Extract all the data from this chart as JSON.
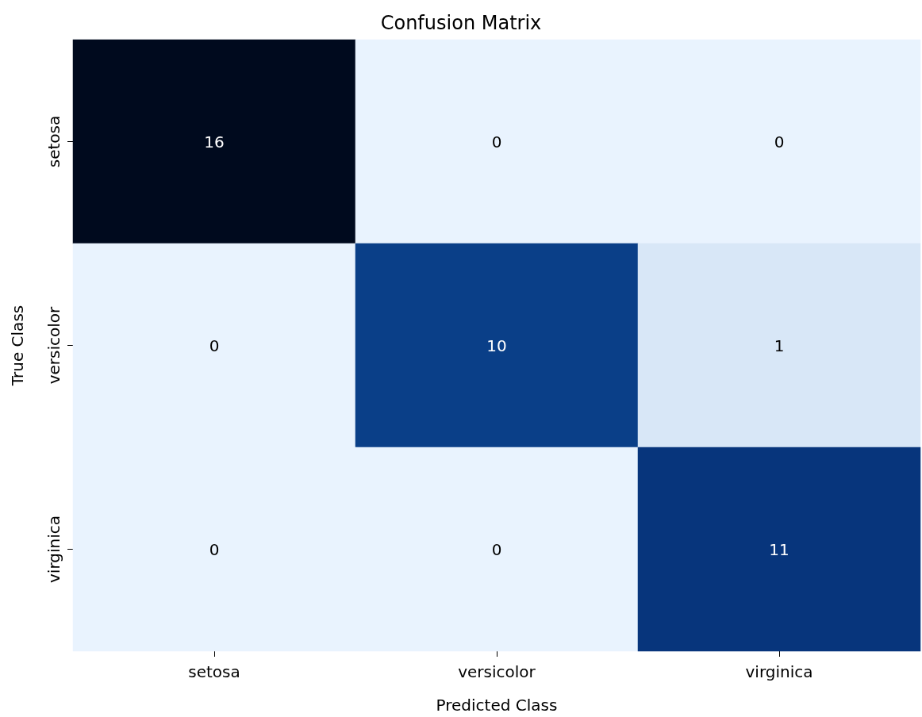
{
  "chart_data": {
    "type": "heatmap",
    "title": "Confusion Matrix",
    "xlabel": "Predicted Class",
    "ylabel": "True Class",
    "categories": [
      "setosa",
      "versicolor",
      "virginica"
    ],
    "y_categories": [
      "setosa",
      "versicolor",
      "virginica"
    ],
    "cells": [
      [
        16,
        0,
        0
      ],
      [
        0,
        10,
        1
      ],
      [
        0,
        0,
        11
      ]
    ],
    "data_labels": true
  }
}
